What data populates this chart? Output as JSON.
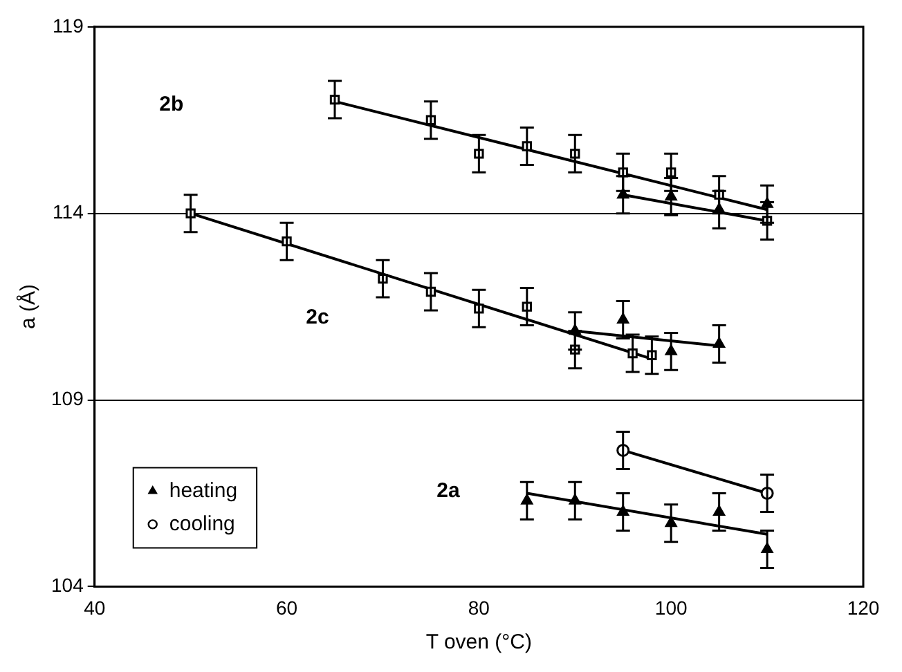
{
  "chart_data": {
    "type": "scatter",
    "xlabel": "T oven (°C)",
    "ylabel": "a (Å)",
    "xlim": [
      40,
      120
    ],
    "xticks": [
      40,
      60,
      80,
      100,
      120
    ],
    "ylim": [
      104,
      119
    ],
    "yticks": [
      104,
      109,
      114,
      119
    ],
    "grid": "y",
    "legend": "bottom left",
    "annotations": [
      "2b",
      "2c",
      "2a"
    ],
    "series": [
      {
        "name": "heating",
        "type": "scatter",
        "marker": "triangle",
        "color": "#000000",
        "x": [
          85,
          90,
          95,
          100,
          105,
          110,
          90,
          95,
          100,
          105,
          95,
          100,
          105,
          110
        ],
        "values": [
          106.3,
          106.3,
          106.0,
          105.7,
          106.0,
          105.0,
          110.85,
          111.15,
          110.3,
          110.5,
          114.5,
          114.45,
          114.1,
          114.25
        ],
        "errors": [
          0.5,
          0.5,
          0.5,
          0.5,
          0.5,
          0.5,
          0.5,
          0.5,
          0.5,
          0.5,
          0.5,
          0.5,
          0.5,
          0.5
        ]
      },
      {
        "name": "cooling",
        "type": "scatter",
        "marker": "circle",
        "color": "#000000",
        "x": [
          95,
          110
        ],
        "values": [
          107.65,
          106.5
        ],
        "errors": [
          0.5,
          0.5
        ]
      },
      {
        "type": "scatter",
        "marker": "square",
        "color": "#000000",
        "x": [
          50,
          60,
          70,
          75,
          80,
          85,
          90,
          96,
          98,
          65,
          75,
          80,
          85,
          90,
          95,
          100,
          105,
          110
        ],
        "values": [
          114.0,
          113.25,
          112.25,
          111.9,
          111.45,
          111.5,
          110.35,
          110.25,
          110.2,
          117.05,
          116.5,
          115.6,
          115.8,
          115.6,
          115.1,
          115.1,
          114.5,
          113.8
        ],
        "errors": [
          0.5,
          0.5,
          0.5,
          0.5,
          0.5,
          0.5,
          0.5,
          0.5,
          0.5,
          0.5,
          0.5,
          0.5,
          0.5,
          0.5,
          0.5,
          0.5,
          0.5,
          0.5
        ]
      },
      {
        "type": "line",
        "marker": "none",
        "color": "#000000",
        "x": [
          85,
          110
        ],
        "values": [
          106.5,
          105.4
        ]
      },
      {
        "type": "line",
        "marker": "none",
        "color": "#000000",
        "x": [
          95,
          110
        ],
        "values": [
          107.65,
          106.5
        ]
      },
      {
        "type": "line",
        "marker": "none",
        "color": "#000000",
        "x": [
          90,
          105
        ],
        "values": [
          110.85,
          110.45
        ]
      },
      {
        "type": "line",
        "marker": "none",
        "color": "#000000",
        "x": [
          50,
          98
        ],
        "values": [
          114.0,
          110.1
        ]
      },
      {
        "type": "line",
        "marker": "none",
        "color": "#000000",
        "x": [
          65,
          110
        ],
        "values": [
          117.0,
          114.1
        ]
      },
      {
        "type": "line",
        "marker": "none",
        "color": "#000000",
        "x": [
          95,
          110
        ],
        "values": [
          114.5,
          113.8
        ]
      }
    ]
  }
}
